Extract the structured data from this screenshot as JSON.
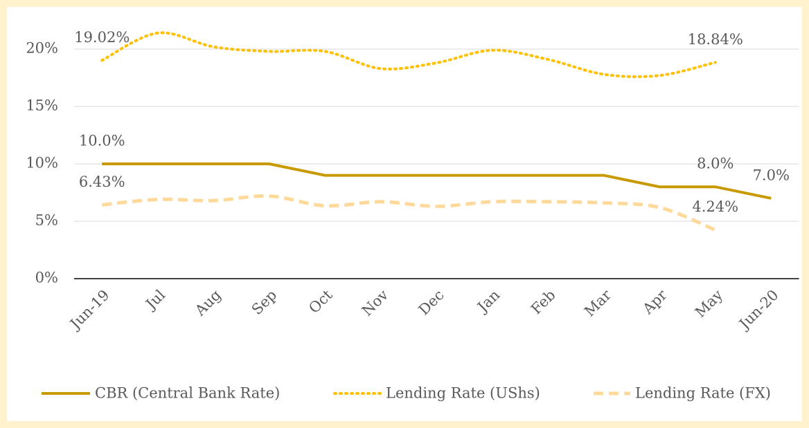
{
  "chart_data": {
    "type": "line",
    "categories": [
      "Jun-19",
      "Jul",
      "Aug",
      "Sep",
      "Oct",
      "Nov",
      "Dec",
      "Jan",
      "Feb",
      "Mar",
      "Apr",
      "May",
      "Jun-20"
    ],
    "series": [
      {
        "name": "CBR (Central Bank Rate)",
        "color": "#C99A00",
        "style": "solid",
        "smooth": false,
        "values": [
          10,
          10,
          10,
          10,
          9,
          9,
          9,
          9,
          9,
          9,
          8,
          8,
          7
        ],
        "value_labels": [
          "10.0%",
          null,
          null,
          null,
          null,
          null,
          null,
          null,
          null,
          null,
          null,
          "8.0%",
          "7.0%"
        ]
      },
      {
        "name": "Lending Rate (UShs)",
        "color": "#FFC000",
        "style": "dotted",
        "smooth": true,
        "values": [
          19.02,
          21.4,
          20.2,
          19.8,
          19.8,
          18.3,
          18.8,
          19.9,
          19.1,
          17.8,
          17.7,
          18.84,
          null
        ],
        "value_labels": [
          "19.02%",
          null,
          null,
          null,
          null,
          null,
          null,
          null,
          null,
          null,
          null,
          "18.84%",
          null
        ]
      },
      {
        "name": "Lending Rate (FX)",
        "color": "#FFD99A",
        "style": "dashed",
        "smooth": true,
        "values": [
          6.43,
          6.9,
          6.8,
          7.2,
          6.35,
          6.7,
          6.3,
          6.7,
          6.7,
          6.6,
          6.2,
          4.24,
          null
        ],
        "value_labels": [
          "6.43%",
          null,
          null,
          null,
          null,
          null,
          null,
          null,
          null,
          null,
          null,
          "4.24%",
          null
        ]
      }
    ],
    "ylim": [
      0,
      20
    ],
    "yticks": [
      {
        "value": 0,
        "label": "0%"
      },
      {
        "value": 5,
        "label": "5%"
      },
      {
        "value": 10,
        "label": "10%"
      },
      {
        "value": 15,
        "label": "15%"
      },
      {
        "value": 20,
        "label": "20%"
      }
    ],
    "grid": true,
    "legend": "bottom"
  }
}
